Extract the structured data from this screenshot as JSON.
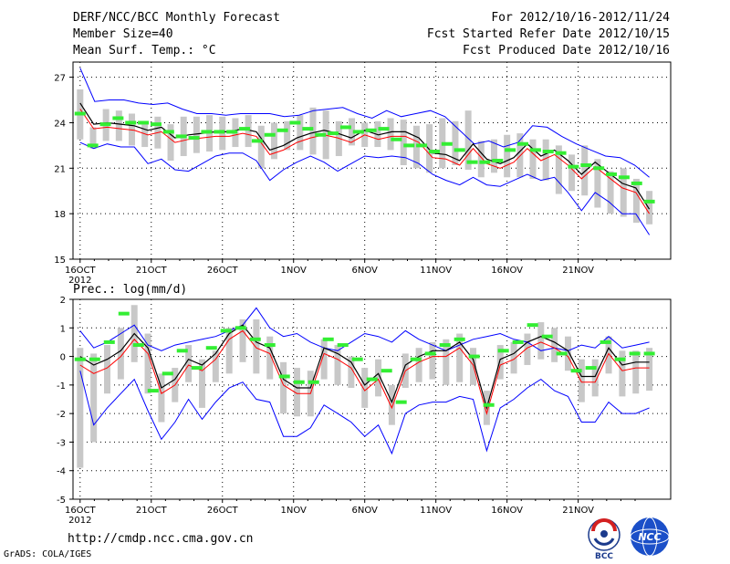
{
  "header": {
    "title": "DERF/NCC/BCC Monthly Forecast",
    "member_size": "Member Size=40",
    "variable": "Mean Surf. Temp.: °C",
    "period": "For 2012/10/16-2012/11/24",
    "fcst_started": "Fcst Started Refer Date 2012/10/15",
    "fcst_produced": "Fcst Produced Date 2012/10/16"
  },
  "footer": {
    "url": "http://cmdp.ncc.cma.gov.cn",
    "grads": "GrADS: COLA/IGES",
    "logo_bcc": "BCC",
    "logo_ncc": "NCC"
  },
  "colors": {
    "envelope": "#0000ff",
    "mean": "#000000",
    "median": "#ff0000",
    "spread": "#c8c8c8",
    "marker": "#33ee33"
  },
  "chart_data": [
    {
      "type": "line",
      "title": "Mean Surf. Temp.: °C",
      "x_tick_labels": [
        "16OCT",
        "21OCT",
        "26OCT",
        "1NOV",
        "6NOV",
        "11NOV",
        "16NOV",
        "21NOV"
      ],
      "x_tick_days": [
        1,
        6,
        11,
        16,
        21,
        26,
        31,
        36
      ],
      "x_year_label": "2012",
      "ylim": [
        15,
        28
      ],
      "y_ticks": [
        15,
        18,
        21,
        24,
        27
      ],
      "series": [
        {
          "name": "max",
          "values": [
            27.6,
            25.4,
            25.5,
            25.5,
            25.3,
            25.2,
            25.3,
            24.9,
            24.6,
            24.6,
            24.5,
            24.6,
            24.6,
            24.6,
            24.4,
            24.5,
            24.8,
            24.9,
            25.0,
            24.6,
            24.3,
            24.8,
            24.4,
            24.6,
            24.8,
            24.4,
            23.5,
            22.6,
            22.8,
            22.4,
            22.7,
            23.8,
            23.7,
            23.1,
            22.6,
            22.2,
            21.8,
            21.7,
            21.2,
            20.4
          ]
        },
        {
          "name": "mean",
          "values": [
            25.3,
            23.9,
            24.0,
            23.9,
            23.8,
            23.5,
            23.7,
            23.0,
            23.2,
            23.3,
            23.4,
            23.4,
            23.6,
            23.4,
            22.2,
            22.5,
            23.0,
            23.3,
            23.5,
            23.3,
            23.0,
            23.5,
            23.2,
            23.4,
            23.4,
            23.0,
            22.0,
            21.9,
            21.5,
            22.6,
            21.6,
            21.3,
            21.7,
            22.6,
            21.8,
            22.2,
            21.5,
            20.6,
            21.4,
            20.7,
            20.0,
            19.7,
            18.3
          ]
        },
        {
          "name": "median",
          "values": [
            24.9,
            23.6,
            23.7,
            23.6,
            23.5,
            23.2,
            23.4,
            22.7,
            22.9,
            23.0,
            23.1,
            23.1,
            23.3,
            23.1,
            21.9,
            22.2,
            22.7,
            23.0,
            23.2,
            23.0,
            22.7,
            23.2,
            22.9,
            23.1,
            23.1,
            22.7,
            21.7,
            21.6,
            21.2,
            22.3,
            21.3,
            21.0,
            21.4,
            22.3,
            21.5,
            21.9,
            21.2,
            20.3,
            21.1,
            20.4,
            19.7,
            19.4,
            18.0
          ]
        },
        {
          "name": "min",
          "values": [
            22.7,
            22.3,
            22.6,
            22.4,
            22.4,
            21.3,
            21.6,
            20.9,
            20.8,
            21.3,
            21.8,
            22.0,
            22.0,
            21.5,
            20.2,
            20.9,
            21.4,
            21.8,
            21.4,
            20.8,
            21.3,
            21.8,
            21.7,
            21.8,
            21.7,
            21.3,
            20.6,
            20.2,
            19.9,
            20.4,
            19.9,
            19.8,
            20.2,
            20.6,
            20.2,
            20.4,
            19.4,
            18.2,
            19.4,
            18.8,
            18.0,
            18.0,
            16.6
          ]
        },
        {
          "name": "spread_top",
          "values": [
            26.2,
            23.7,
            24.9,
            24.8,
            24.6,
            24.1,
            24.4,
            23.9,
            24.4,
            24.4,
            24.5,
            24.4,
            24.3,
            24.5,
            23.8,
            24.0,
            24.1,
            24.5,
            25.0,
            24.8,
            24.1,
            24.3,
            24.0,
            24.1,
            24.3,
            24.2,
            23.8,
            23.9,
            24.3,
            24.1,
            24.8,
            22.8,
            22.9,
            23.2,
            23.3,
            22.9,
            22.9,
            22.5,
            21.9,
            22.5,
            21.6,
            20.8,
            21.0,
            20.3,
            19.5
          ]
        },
        {
          "name": "spread_bottom",
          "values": [
            22.9,
            22.3,
            22.8,
            22.8,
            22.5,
            22.4,
            22.3,
            21.5,
            21.8,
            22.0,
            22.1,
            22.2,
            22.4,
            22.4,
            21.0,
            21.6,
            22.2,
            22.2,
            21.9,
            21.6,
            21.8,
            22.5,
            22.4,
            22.4,
            22.2,
            21.2,
            21.0,
            20.7,
            21.0,
            21.2,
            20.9,
            20.4,
            20.7,
            20.4,
            20.4,
            20.3,
            20.2,
            19.3,
            19.5,
            19.2,
            18.4,
            18.0,
            17.8,
            17.4,
            17.3
          ]
        },
        {
          "name": "markers",
          "values": [
            24.6,
            22.5,
            23.9,
            24.3,
            24.0,
            24.0,
            23.9,
            23.4,
            23.1,
            23.0,
            23.4,
            23.4,
            23.4,
            23.6,
            22.8,
            23.2,
            23.5,
            24.0,
            23.6,
            23.2,
            23.3,
            23.7,
            23.4,
            23.5,
            23.6,
            22.9,
            22.5,
            22.5,
            22.1,
            22.6,
            22.2,
            21.4,
            21.4,
            21.5,
            22.2,
            22.6,
            22.2,
            22.1,
            22.0,
            21.1,
            21.2,
            21.0,
            20.6,
            20.4,
            20.0,
            18.8
          ]
        }
      ]
    },
    {
      "type": "line",
      "title": "Prec.: log(mm/d)",
      "x_tick_labels": [
        "16OCT",
        "21OCT",
        "26OCT",
        "1NOV",
        "6NOV",
        "11NOV",
        "16NOV",
        "21NOV"
      ],
      "x_tick_days": [
        1,
        6,
        11,
        16,
        21,
        26,
        31,
        36
      ],
      "x_year_label": "2012",
      "ylim": [
        -5,
        2
      ],
      "y_ticks": [
        -5,
        -4,
        -3,
        -2,
        -1,
        0,
        1,
        2
      ],
      "series": [
        {
          "name": "max",
          "values": [
            0.9,
            0.3,
            0.5,
            0.8,
            1.1,
            0.4,
            0.2,
            0.4,
            0.5,
            0.6,
            0.7,
            0.9,
            1.1,
            1.7,
            1.0,
            0.7,
            0.8,
            0.5,
            0.3,
            0.2,
            0.5,
            0.8,
            0.7,
            0.5,
            0.9,
            0.6,
            0.4,
            0.2,
            0.4,
            0.6,
            0.7,
            0.8,
            0.6,
            0.5,
            0.2,
            0.3,
            0.2,
            0.4,
            0.3,
            0.7,
            0.3,
            0.4,
            0.5
          ]
        },
        {
          "name": "mean",
          "values": [
            0.0,
            -0.3,
            -0.1,
            0.2,
            0.8,
            0.3,
            -1.1,
            -0.8,
            -0.1,
            -0.3,
            0.1,
            0.8,
            1.1,
            0.5,
            0.3,
            -0.8,
            -1.1,
            -1.1,
            0.3,
            0.1,
            -0.2,
            -1.0,
            -0.6,
            -1.6,
            -0.3,
            0.0,
            0.2,
            0.2,
            0.5,
            -0.1,
            -1.8,
            -0.1,
            0.1,
            0.5,
            0.7,
            0.5,
            0.2,
            -0.7,
            -0.7,
            0.3,
            -0.3,
            -0.2,
            -0.2
          ]
        },
        {
          "name": "median",
          "values": [
            -0.3,
            -0.6,
            -0.4,
            0.0,
            0.6,
            0.1,
            -1.3,
            -1.0,
            -0.3,
            -0.5,
            -0.1,
            0.6,
            0.9,
            0.3,
            0.1,
            -1.0,
            -1.3,
            -1.3,
            0.1,
            -0.1,
            -0.4,
            -1.2,
            -0.8,
            -1.8,
            -0.5,
            -0.2,
            0.0,
            0.0,
            0.3,
            -0.3,
            -2.0,
            -0.3,
            -0.1,
            0.3,
            0.5,
            0.3,
            0.0,
            -0.9,
            -0.9,
            0.1,
            -0.5,
            -0.4,
            -0.4
          ]
        },
        {
          "name": "min",
          "values": [
            -0.5,
            -2.4,
            -1.8,
            -1.3,
            -0.8,
            -1.9,
            -2.9,
            -2.3,
            -1.5,
            -2.2,
            -1.6,
            -1.1,
            -0.9,
            -1.5,
            -1.6,
            -2.8,
            -2.8,
            -2.5,
            -1.7,
            -2.0,
            -2.3,
            -2.8,
            -2.4,
            -3.4,
            -2.0,
            -1.7,
            -1.6,
            -1.6,
            -1.4,
            -1.5,
            -3.3,
            -1.8,
            -1.5,
            -1.1,
            -0.8,
            -1.2,
            -1.4,
            -2.3,
            -2.3,
            -1.6,
            -2.0,
            -2.0,
            -1.8
          ]
        },
        {
          "name": "spread_top",
          "values": [
            0.3,
            0.1,
            0.4,
            1.0,
            1.8,
            0.8,
            -0.6,
            -0.4,
            0.4,
            -0.1,
            0.2,
            1.0,
            1.3,
            1.3,
            0.7,
            -0.2,
            -0.4,
            -0.5,
            0.6,
            0.4,
            0.0,
            -0.4,
            -0.1,
            -1.0,
            0.1,
            0.3,
            0.5,
            0.6,
            0.8,
            0.3,
            -1.2,
            0.4,
            0.5,
            0.8,
            1.2,
            1.0,
            0.7,
            -0.1,
            -0.1,
            0.7,
            0.2,
            0.2,
            0.3
          ]
        },
        {
          "name": "spread_bottom",
          "values": [
            -3.9,
            -3.0,
            -1.3,
            -0.8,
            -0.2,
            -1.3,
            -2.3,
            -1.6,
            -0.9,
            -1.8,
            -0.9,
            -0.6,
            -0.2,
            -0.6,
            -0.8,
            -2.0,
            -2.1,
            -2.1,
            -0.8,
            -1.0,
            -1.1,
            -1.8,
            -1.4,
            -2.4,
            -1.1,
            -0.9,
            -0.8,
            -1.0,
            -0.9,
            -1.0,
            -2.4,
            -0.8,
            -0.6,
            -0.3,
            -0.1,
            -0.2,
            -0.5,
            -1.6,
            -1.4,
            -0.6,
            -1.4,
            -1.3,
            -1.2
          ]
        },
        {
          "name": "markers",
          "values": [
            -0.1,
            -0.1,
            0.5,
            1.5,
            0.4,
            -1.2,
            -0.6,
            0.2,
            -0.4,
            0.3,
            0.9,
            1.0,
            0.6,
            0.4,
            -0.7,
            -0.9,
            -0.9,
            0.6,
            0.4,
            -0.1,
            -0.8,
            -0.5,
            -1.6,
            -0.1,
            0.1,
            0.4,
            0.6,
            0.0,
            -1.7,
            0.2,
            0.5,
            1.1,
            0.7,
            0.1,
            -0.5,
            -0.4,
            0.5,
            -0.1,
            0.1,
            0.1
          ]
        }
      ]
    }
  ]
}
